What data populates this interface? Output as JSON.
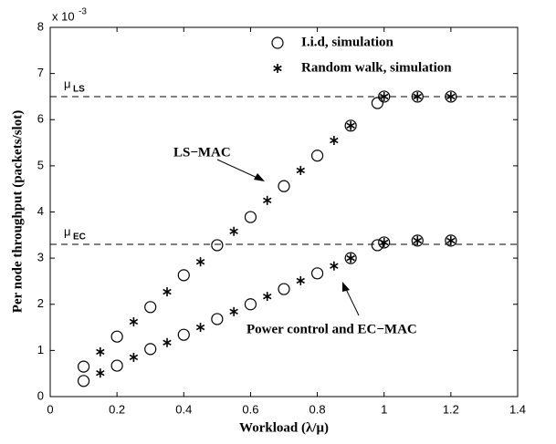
{
  "chart_data": {
    "type": "scatter",
    "xlabel": "Workload (λ/μ)",
    "ylabel": "Per node throughput (packets/slot)",
    "y_multiplier": "x 10",
    "y_exponent": "-3",
    "xlim": [
      0,
      1.4
    ],
    "ylim": [
      0,
      8
    ],
    "xticks": [
      0,
      0.2,
      0.4,
      0.6,
      0.8,
      1,
      1.2,
      1.4
    ],
    "yticks": [
      0,
      1,
      2,
      3,
      4,
      5,
      6,
      7,
      8
    ],
    "series": [
      {
        "name": "I.i.d, simulation",
        "marker": "circle",
        "color": "#000000",
        "x": [
          0.1,
          0.2,
          0.3,
          0.4,
          0.5,
          0.6,
          0.7,
          0.8,
          0.9,
          0.98,
          1.0,
          1.1,
          1.2,
          0.1,
          0.2,
          0.3,
          0.4,
          0.5,
          0.6,
          0.7,
          0.8,
          0.9,
          0.98,
          1.0,
          1.1,
          1.2
        ],
        "values": [
          0.65,
          1.3,
          1.94,
          2.63,
          3.28,
          3.89,
          4.56,
          5.22,
          5.87,
          6.36,
          6.5,
          6.5,
          6.5,
          0.34,
          0.67,
          1.03,
          1.34,
          1.68,
          2.0,
          2.33,
          2.67,
          3.0,
          3.28,
          3.34,
          3.38,
          3.38
        ]
      },
      {
        "name": "Random walk, simulation",
        "marker": "star",
        "color": "#000000",
        "x": [
          0.15,
          0.25,
          0.35,
          0.45,
          0.55,
          0.65,
          0.75,
          0.85,
          0.9,
          1.0,
          1.1,
          1.2,
          0.15,
          0.25,
          0.35,
          0.45,
          0.55,
          0.65,
          0.75,
          0.85,
          0.9,
          1.0,
          1.1,
          1.2
        ],
        "values": [
          0.97,
          1.62,
          2.27,
          2.92,
          3.58,
          4.25,
          4.9,
          5.55,
          5.87,
          6.5,
          6.5,
          6.5,
          0.51,
          0.85,
          1.17,
          1.5,
          1.84,
          2.17,
          2.51,
          2.83,
          3.0,
          3.34,
          3.38,
          3.38
        ]
      }
    ],
    "reference_lines": [
      {
        "value": 6.5,
        "label": "μ",
        "subscript": "LS"
      },
      {
        "value": 3.3,
        "label": "μ",
        "subscript": "EC"
      }
    ],
    "annotations": [
      "LS−MAC",
      "Power control and EC−MAC"
    ]
  }
}
